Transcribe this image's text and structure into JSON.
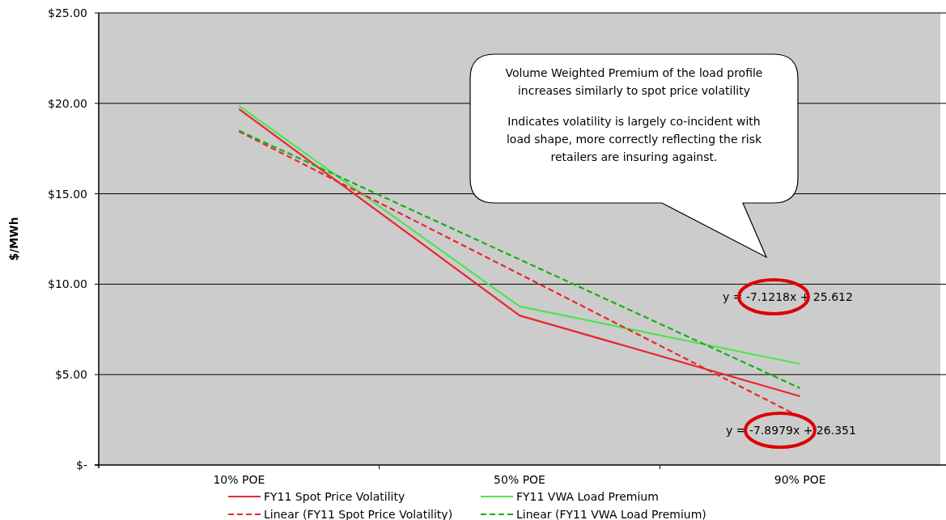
{
  "chart_data": {
    "type": "line",
    "ylabel": "$/MWh",
    "categories": [
      "10% POE",
      "50% POE",
      "90% POE"
    ],
    "series": [
      {
        "name": "FY11 Spot Price Volatility",
        "color": "#e8262d",
        "values": [
          19.68,
          8.27,
          3.8
        ],
        "line_style": "solid"
      },
      {
        "name": "FY11 VWA Load Premium",
        "color": "#4ee44e",
        "values": [
          19.86,
          8.77,
          5.59
        ],
        "line_style": "solid"
      },
      {
        "name": "Linear (FY11 Spot Price Volatility)",
        "color": "#e8262d",
        "values": [
          18.45,
          10.56,
          2.66
        ],
        "line_style": "dashed"
      },
      {
        "name": "Linear (FY11 VWA Load Premium)",
        "color": "#12b012",
        "values": [
          18.49,
          11.37,
          4.25
        ],
        "line_style": "dashed"
      }
    ],
    "ylim": [
      0,
      25
    ],
    "yticks": [
      {
        "value": 0,
        "label": "$-"
      },
      {
        "value": 5,
        "label": "$5.00"
      },
      {
        "value": 10,
        "label": "$10.00"
      },
      {
        "value": 15,
        "label": "$15.00"
      },
      {
        "value": 20,
        "label": "$20.00"
      },
      {
        "value": 25,
        "label": "$25.00"
      }
    ],
    "grid": "y",
    "legend": "bottom",
    "marker": "none",
    "annotations": [
      "Volume Weighted Premium of the load profile increases similarly to spot price volatility",
      "Indicates volatility is largely co-incident with load shape, more correctly reflecting the risk retailers are insuring against.",
      "y = -7.1218x + 25.612",
      "y = -7.8979x + 26.351"
    ]
  }
}
